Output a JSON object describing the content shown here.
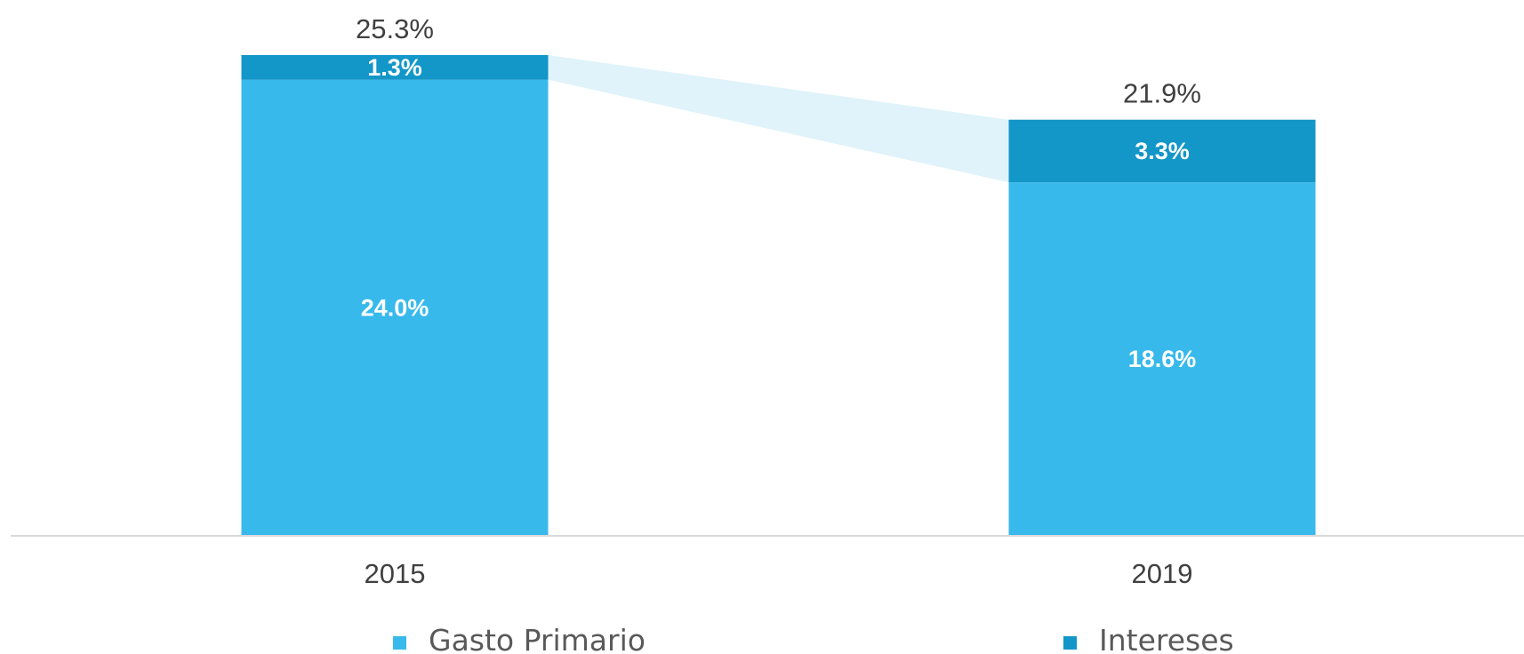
{
  "chart_data": {
    "type": "bar",
    "stacked": true,
    "categories": [
      "2015",
      "2019"
    ],
    "series": [
      {
        "name": "Gasto Primario",
        "values": [
          24.0,
          18.6
        ],
        "labels": [
          "24.0%",
          "18.6%"
        ],
        "color": "#38b9eb"
      },
      {
        "name": "Intereses",
        "values": [
          1.3,
          3.3
        ],
        "labels": [
          "1.3%",
          "3.3%"
        ],
        "color": "#1396c8"
      }
    ],
    "totals": [
      25.3,
      21.9
    ],
    "total_labels": [
      "25.3%",
      "21.9%"
    ],
    "ylim": [
      0,
      25.3
    ],
    "grid": false,
    "legend_position": "bottom",
    "connector_color": "#e0f3fa",
    "axis_color": "#d9d9d9"
  }
}
